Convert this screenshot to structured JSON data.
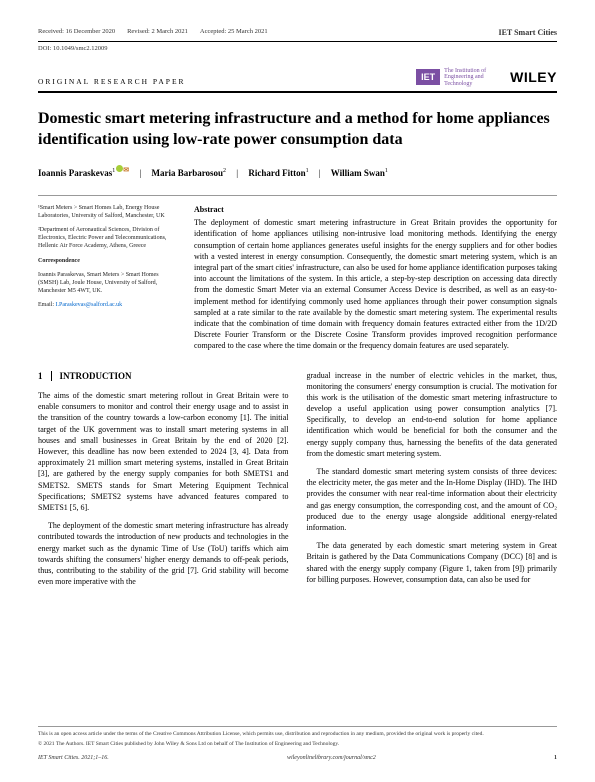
{
  "header": {
    "received": "Received: 16 December 2020",
    "revised": "Revised: 2 March 2021",
    "accepted": "Accepted: 25 March 2021",
    "journal": "IET Smart Cities",
    "doi": "DOI: 10.1049/smc2.12009",
    "paper_type": "ORIGINAL RESEARCH PAPER",
    "iet_label": "IET",
    "iet_tagline": "The Institution of Engineering and Technology",
    "wiley": "WILEY"
  },
  "title": "Domestic smart metering infrastructure and a method for home appliances identification using low-rate power consumption data",
  "authors": [
    {
      "name": "Ioannis Paraskevas",
      "affil": "1",
      "orcid": true,
      "correspond": true
    },
    {
      "name": "Maria Barbarosou",
      "affil": "2",
      "orcid": false,
      "correspond": false
    },
    {
      "name": "Richard Fitton",
      "affil": "1",
      "orcid": false,
      "correspond": false
    },
    {
      "name": "William Swan",
      "affil": "1",
      "orcid": false,
      "correspond": false
    }
  ],
  "affiliations": {
    "a1": "¹Smart Meters > Smart Homes Lab, Energy House Laboratories, University of Salford, Manchester, UK",
    "a2": "²Department of Aeronautical Sciences, Division of Electronics, Electric Power and Telecommunications, Hellenic Air Force Academy, Athens, Greece",
    "corr_head": "Correspondence",
    "corr_body": "Ioannis Paraskevas, Smart Meters > Smart Homes (SMSH) Lab, Joule House, University of Salford, Manchester M5 4WT, UK.",
    "email_label": "Email: ",
    "email": "I.Paraskevas@salford.ac.uk"
  },
  "abstract": {
    "head": "Abstract",
    "body": "The deployment of domestic smart metering infrastructure in Great Britain provides the opportunity for identification of home appliances utilising non-intrusive load monitoring methods. Identifying the energy consumption of certain home appliances generates useful insights for the energy suppliers and for other bodies with a vested interest in energy consumption. Consequently, the domestic smart metering system, which is an integral part of the smart cities' infrastructure, can also be used for home appliance identification purposes taking into account the limitations of the system. In this article, a step-by-step description on accessing data directly from the domestic Smart Meter via an external Consumer Access Device is described, as well as an easy-to-implement method for identifying commonly used home appliances through their power consumption signals sampled at a rate similar to the rate available by the domestic smart metering system. The experimental results indicate that the combination of time domain with frequency domain features extracted either from the 1D/2D Discrete Fourier Transform or the Discrete Cosine Transform provides improved recognition performance compared to the case where the time domain or the frequency domain features are used separately."
  },
  "intro": {
    "head_num": "1",
    "head_text": "INTRODUCTION",
    "p1": "The aims of the domestic smart metering rollout in Great Britain were to enable consumers to monitor and control their energy usage and to assist in the transition of the country towards a low-carbon economy [1]. The initial target of the UK government was to install smart metering systems in all houses and small businesses in Great Britain by the end of 2020 [2]. However, this deadline has now been extended to 2024 [3, 4]. Data from approximately 21 million smart metering systems, installed in Great Britain [3], are gathered by the energy supply companies for both SMETS1 and SMETS2. SMETS stands for Smart Metering Equipment Technical Specifications; SMETS2 systems have advanced features compared to SMETS1 [5, 6].",
    "p2": "The deployment of the domestic smart metering infrastructure has already contributed towards the introduction of new products and technologies in the energy market such as the dynamic Time of Use (ToU) tariffs which aim towards shifting the consumers' higher energy demands to off-peak periods, thus, contributing to the stability of the grid [7]. Grid stability will become even more imperative with the",
    "p3": "gradual increase in the number of electric vehicles in the market, thus, monitoring the consumers' energy consumption is crucial. The motivation for this work is the utilisation of the domestic smart metering infrastructure to develop a useful application using power consumption analytics [7]. Specifically, to develop an end-to-end solution for home appliance identification which would be beneficial for both the consumer and the energy supply company thus, harnessing the benefits of the data generated from the domestic smart metering system.",
    "p4": "The standard domestic smart metering system consists of three devices: the electricity meter, the gas meter and the In-Home Display (IHD). The IHD provides the consumer with near real-time information about their electricity and gas energy consumption, the corresponding cost, and the amount of CO₂ produced due to the energy usage alongside additional energy-related information.",
    "p5": "The data generated by each domestic smart metering system in Great Britain is gathered by the Data Communications Company (DCC) [8] and is shared with the energy supply company (Figure 1, taken from [9]) primarily for billing purposes. However, consumption data, can also be used for"
  },
  "footer": {
    "oa": "This is an open access article under the terms of the Creative Commons Attribution License, which permits use, distribution and reproduction in any medium, provided the original work is properly cited.",
    "copyright": "© 2021 The Authors. IET Smart Cities published by John Wiley & Sons Ltd on behalf of The Institution of Engineering and Technology.",
    "citation": "IET Smart Cities. 2021;1–16.",
    "url": "wileyonlinelibrary.com/journal/smc2",
    "page": "1"
  },
  "colors": {
    "iet_purple": "#7b4fa3",
    "link_blue": "#0066cc",
    "orcid_green": "#a6ce39"
  }
}
